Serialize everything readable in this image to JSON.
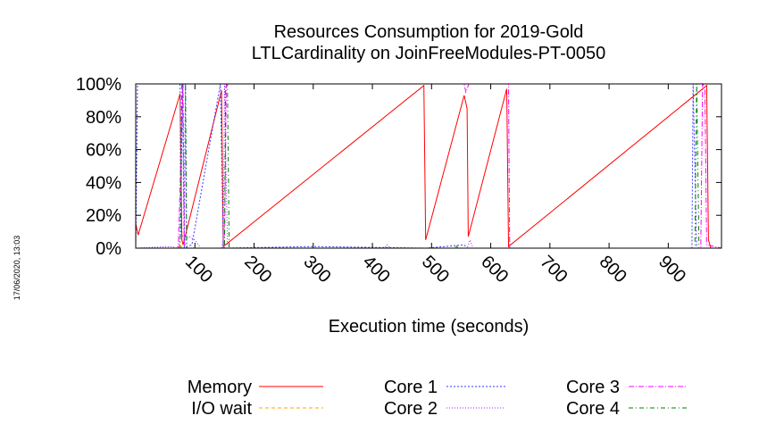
{
  "chart_data": {
    "type": "line",
    "title": "Resources Consumption for 2019-Gold",
    "subtitle": "LTLCardinality on JoinFreeModules-PT-0050",
    "xlabel": "Execution time (seconds)",
    "ylabel": "",
    "side_label": "17/06/2020, 13:03",
    "xlim": [
      0,
      990
    ],
    "ylim": [
      0,
      100
    ],
    "x_ticks": [
      100,
      200,
      300,
      400,
      500,
      600,
      700,
      800,
      900
    ],
    "x_tick_labels": [
      "100",
      "200",
      "300",
      "400",
      "500",
      "600",
      "700",
      "800",
      "900"
    ],
    "y_ticks": [
      0,
      20,
      40,
      60,
      80,
      100
    ],
    "y_tick_labels": [
      "0%",
      "20%",
      "40%",
      "60%",
      "80%",
      "100%"
    ],
    "legend_position": "bottom",
    "grid": false,
    "series": [
      {
        "name": "Memory",
        "color": "#ff0000",
        "dash": "",
        "points": [
          [
            0,
            15
          ],
          [
            4,
            8
          ],
          [
            75,
            94
          ],
          [
            78,
            5
          ],
          [
            80,
            2
          ],
          [
            145,
            96
          ],
          [
            148,
            1
          ],
          [
            487,
            99
          ],
          [
            490,
            5
          ],
          [
            555,
            93
          ],
          [
            560,
            85
          ],
          [
            562,
            7
          ],
          [
            627,
            97
          ],
          [
            630,
            1
          ],
          [
            965,
            99
          ],
          [
            968,
            5
          ],
          [
            972,
            0
          ],
          [
            990,
            0
          ]
        ]
      },
      {
        "name": "I/O wait",
        "color": "#ffa500",
        "dash": "4,3",
        "points": [
          [
            0,
            0
          ],
          [
            72,
            0
          ],
          [
            75,
            3
          ],
          [
            78,
            0
          ],
          [
            990,
            0
          ]
        ]
      },
      {
        "name": "Core 1",
        "color": "#3a3aff",
        "dash": "2,2",
        "points": [
          [
            0,
            0
          ],
          [
            3,
            100
          ],
          [
            75,
            100
          ],
          [
            76,
            8
          ],
          [
            79,
            100
          ],
          [
            82,
            0
          ],
          [
            84,
            100
          ],
          [
            86,
            1
          ],
          [
            95,
            2
          ],
          [
            143,
            100
          ],
          [
            148,
            0
          ],
          [
            300,
            1
          ],
          [
            490,
            0
          ],
          [
            555,
            2
          ],
          [
            560,
            0
          ],
          [
            640,
            0
          ],
          [
            700,
            0
          ],
          [
            940,
            0
          ],
          [
            942,
            100
          ],
          [
            948,
            0
          ],
          [
            990,
            0
          ]
        ]
      },
      {
        "name": "Core 2",
        "color": "#a020f0",
        "dash": "1,2",
        "points": [
          [
            0,
            0
          ],
          [
            60,
            1
          ],
          [
            70,
            0
          ],
          [
            78,
            8
          ],
          [
            84,
            5
          ],
          [
            90,
            7
          ],
          [
            100,
            5
          ],
          [
            110,
            0
          ],
          [
            145,
            0
          ],
          [
            148,
            5
          ],
          [
            150,
            100
          ],
          [
            155,
            2
          ],
          [
            160,
            0
          ],
          [
            420,
            0
          ],
          [
            425,
            2
          ],
          [
            430,
            0
          ],
          [
            560,
            0
          ],
          [
            565,
            5
          ],
          [
            570,
            0
          ],
          [
            990,
            0
          ]
        ]
      },
      {
        "name": "Core 3",
        "color": "#ff00ff",
        "dash": "6,2,1,2",
        "points": [
          [
            0,
            0
          ],
          [
            72,
            0
          ],
          [
            80,
            100
          ],
          [
            82,
            3
          ],
          [
            86,
            0
          ],
          [
            150,
            0
          ],
          [
            153,
            100
          ],
          [
            555,
            100
          ],
          [
            558,
            95
          ],
          [
            563,
            100
          ],
          [
            630,
            100
          ],
          [
            632,
            0
          ],
          [
            955,
            0
          ],
          [
            958,
            100
          ],
          [
            962,
            98
          ],
          [
            965,
            2
          ],
          [
            990,
            0
          ]
        ]
      },
      {
        "name": "Core 4",
        "color": "#008000",
        "dash": "5,3,1,3",
        "points": [
          [
            0,
            0
          ],
          [
            75,
            0
          ],
          [
            78,
            100
          ],
          [
            84,
            100
          ],
          [
            86,
            0
          ],
          [
            150,
            0
          ],
          [
            152,
            100
          ],
          [
            155,
            100
          ],
          [
            158,
            0
          ],
          [
            540,
            0
          ],
          [
            542,
            2
          ],
          [
            544,
            0
          ],
          [
            945,
            0
          ],
          [
            948,
            100
          ],
          [
            952,
            0
          ],
          [
            990,
            0
          ]
        ]
      }
    ]
  }
}
